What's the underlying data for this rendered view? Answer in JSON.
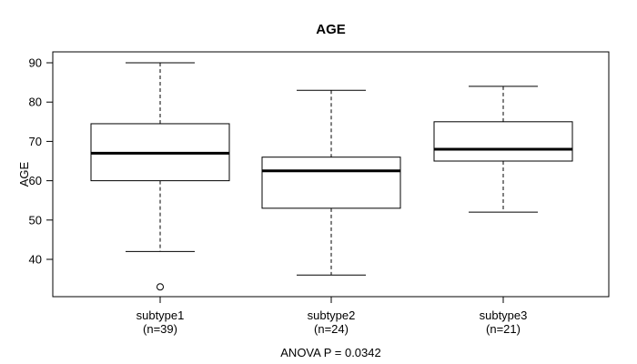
{
  "chart_data": {
    "type": "boxplot",
    "title": "AGE",
    "ylabel": "AGE",
    "annotation": "ANOVA P = 0.0342",
    "grid": false,
    "legend": null,
    "y_axis": {
      "ticks": [
        40,
        50,
        60,
        70,
        80,
        90
      ],
      "ylim": [
        31,
        92
      ]
    },
    "categories": [
      {
        "label": "subtype1",
        "sublabel": "(n=39)",
        "n": 39
      },
      {
        "label": "subtype2",
        "sublabel": "(n=24)",
        "n": 24
      },
      {
        "label": "subtype3",
        "sublabel": "(n=21)",
        "n": 21
      }
    ],
    "series": [
      {
        "name": "subtype1",
        "whisker_low": 42,
        "q1": 60,
        "median": 67,
        "q3": 74.5,
        "whisker_high": 90,
        "outliers": [
          33
        ]
      },
      {
        "name": "subtype2",
        "whisker_low": 36,
        "q1": 53,
        "median": 62.5,
        "q3": 66,
        "whisker_high": 83,
        "outliers": []
      },
      {
        "name": "subtype3",
        "whisker_low": 52,
        "q1": 65,
        "median": 68,
        "q3": 75,
        "whisker_high": 84,
        "outliers": []
      }
    ],
    "colors": {
      "line": "#000000",
      "box_fill": "#ffffff",
      "background": "#ffffff"
    }
  }
}
